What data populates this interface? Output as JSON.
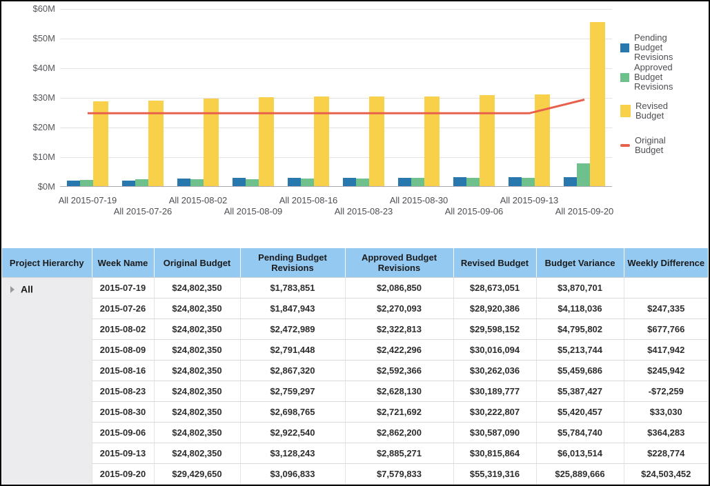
{
  "theme": {
    "pending_color": "#2878AE",
    "approved_color": "#6EC08C",
    "revised_color": "#F8D04A",
    "original_color": "#E8604C",
    "header_bg": "#94C9F2",
    "hierarchy_bg": "#ECECEE",
    "axis_text": "#55565A",
    "grid_color": "#E1E1E6",
    "frame_border": "#000000"
  },
  "chart_data": {
    "type": "combo",
    "title": "",
    "xlabel": "",
    "ylabel": "",
    "ylim": [
      0,
      60000000
    ],
    "grid": true,
    "legend_position": "right",
    "y_tick_labels": [
      "$0M",
      "$10M",
      "$20M",
      "$30M",
      "$40M",
      "$50M",
      "$60M"
    ],
    "categories": [
      "All 2015-07-19",
      "All 2015-07-26",
      "All 2015-08-02",
      "All 2015-08-09",
      "All 2015-08-16",
      "All 2015-08-23",
      "All 2015-08-30",
      "All 2015-09-06",
      "All 2015-09-13",
      "All 2015-09-20"
    ],
    "series": [
      {
        "name": "Pending Budget Revisions",
        "type": "bar",
        "color": "#2878AE",
        "values": [
          1783851,
          1847943,
          2472989,
          2791448,
          2867320,
          2759297,
          2698765,
          2922540,
          3128243,
          3096833
        ]
      },
      {
        "name": "Approved Budget Revisions",
        "type": "bar",
        "color": "#6EC08C",
        "values": [
          2086850,
          2270093,
          2322813,
          2422296,
          2592366,
          2628130,
          2721692,
          2862200,
          2885271,
          7579833
        ]
      },
      {
        "name": "Revised Budget",
        "type": "bar",
        "color": "#F8D04A",
        "values": [
          28673051,
          28920386,
          29598152,
          30016094,
          30262036,
          30189777,
          30222807,
          30587090,
          30815864,
          55319316
        ]
      },
      {
        "name": "Original Budget",
        "type": "line",
        "color": "#E8604C",
        "values": [
          24802350,
          24802350,
          24802350,
          24802350,
          24802350,
          24802350,
          24802350,
          24802350,
          24802350,
          29429650
        ]
      }
    ]
  },
  "table": {
    "columns": [
      "Project Hierarchy",
      "Week Name",
      "Original Budget",
      "Pending Budget Revisions",
      "Approved Budget Revisions",
      "Revised Budget",
      "Budget Variance",
      "Weekly Difference"
    ],
    "hierarchy_label": "All",
    "rows": [
      [
        "2015-07-19",
        "$24,802,350",
        "$1,783,851",
        "$2,086,850",
        "$28,673,051",
        "$3,870,701",
        ""
      ],
      [
        "2015-07-26",
        "$24,802,350",
        "$1,847,943",
        "$2,270,093",
        "$28,920,386",
        "$4,118,036",
        "$247,335"
      ],
      [
        "2015-08-02",
        "$24,802,350",
        "$2,472,989",
        "$2,322,813",
        "$29,598,152",
        "$4,795,802",
        "$677,766"
      ],
      [
        "2015-08-09",
        "$24,802,350",
        "$2,791,448",
        "$2,422,296",
        "$30,016,094",
        "$5,213,744",
        "$417,942"
      ],
      [
        "2015-08-16",
        "$24,802,350",
        "$2,867,320",
        "$2,592,366",
        "$30,262,036",
        "$5,459,686",
        "$245,942"
      ],
      [
        "2015-08-23",
        "$24,802,350",
        "$2,759,297",
        "$2,628,130",
        "$30,189,777",
        "$5,387,427",
        "-$72,259"
      ],
      [
        "2015-08-30",
        "$24,802,350",
        "$2,698,765",
        "$2,721,692",
        "$30,222,807",
        "$5,420,457",
        "$33,030"
      ],
      [
        "2015-09-06",
        "$24,802,350",
        "$2,922,540",
        "$2,862,200",
        "$30,587,090",
        "$5,784,740",
        "$364,283"
      ],
      [
        "2015-09-13",
        "$24,802,350",
        "$3,128,243",
        "$2,885,271",
        "$30,815,864",
        "$6,013,514",
        "$228,774"
      ],
      [
        "2015-09-20",
        "$29,429,650",
        "$3,096,833",
        "$7,579,833",
        "$55,319,316",
        "$25,889,666",
        "$24,503,452"
      ]
    ]
  }
}
